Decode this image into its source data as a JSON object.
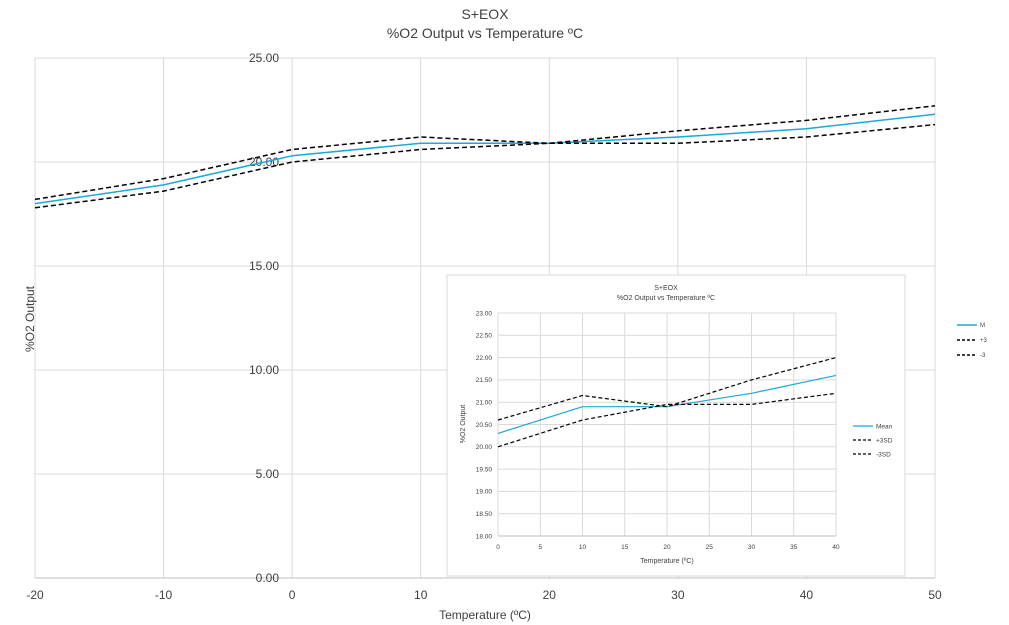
{
  "chart_data": [
    {
      "type": "line",
      "title": "S+EOX",
      "subtitle": "%O2 Output vs Temperature ºC",
      "xlabel": "Temperature (ºC)",
      "ylabel": "%O2 Output",
      "xlim": [
        -20,
        50
      ],
      "ylim": [
        0,
        25
      ],
      "x_ticks": [
        "-20",
        "-10",
        "0",
        "10",
        "20",
        "30",
        "40",
        "50"
      ],
      "y_ticks": [
        "0.00",
        "5.00",
        "10.00",
        "15.00",
        "20.00",
        "25.00"
      ],
      "grid": true,
      "legend_position": "right",
      "x": [
        -20,
        -10,
        0,
        10,
        20,
        30,
        40,
        50
      ],
      "series": [
        {
          "name": "M",
          "color": "#1aa9d8",
          "dash": "solid",
          "values": [
            18.0,
            18.9,
            20.3,
            20.9,
            20.9,
            21.2,
            21.6,
            22.3
          ]
        },
        {
          "name": "+3",
          "color": "#000000",
          "dash": "dashed",
          "values": [
            18.2,
            19.2,
            20.6,
            21.2,
            20.9,
            21.5,
            22.0,
            22.7
          ]
        },
        {
          "name": "-3",
          "color": "#000000",
          "dash": "dashed",
          "values": [
            17.8,
            18.6,
            20.0,
            20.6,
            20.9,
            20.9,
            21.2,
            21.8
          ]
        }
      ]
    },
    {
      "type": "line",
      "title": "S+EOX",
      "subtitle": "%O2 Output vs Temperature ºC",
      "xlabel": "Temperature (ºC)",
      "ylabel": "%O2 Output",
      "xlim": [
        0,
        40
      ],
      "ylim": [
        18,
        23
      ],
      "x_ticks": [
        "0",
        "5",
        "10",
        "15",
        "20",
        "25",
        "30",
        "35",
        "40"
      ],
      "y_ticks": [
        "18.00",
        "18.50",
        "19.00",
        "19.50",
        "20.00",
        "20.50",
        "21.00",
        "21.50",
        "22.00",
        "22.50",
        "23.00"
      ],
      "grid": true,
      "legend_position": "right",
      "x": [
        0,
        10,
        20,
        30,
        40
      ],
      "series": [
        {
          "name": "Mean",
          "color": "#1aa9d8",
          "dash": "solid",
          "values": [
            20.3,
            20.9,
            20.9,
            21.2,
            21.6
          ]
        },
        {
          "name": "+3SD",
          "color": "#000000",
          "dash": "dashed",
          "values": [
            20.6,
            21.15,
            20.9,
            21.5,
            22.0
          ]
        },
        {
          "name": "-3SD",
          "color": "#000000",
          "dash": "dashed",
          "values": [
            20.0,
            20.6,
            20.95,
            20.95,
            21.2
          ]
        }
      ]
    }
  ]
}
